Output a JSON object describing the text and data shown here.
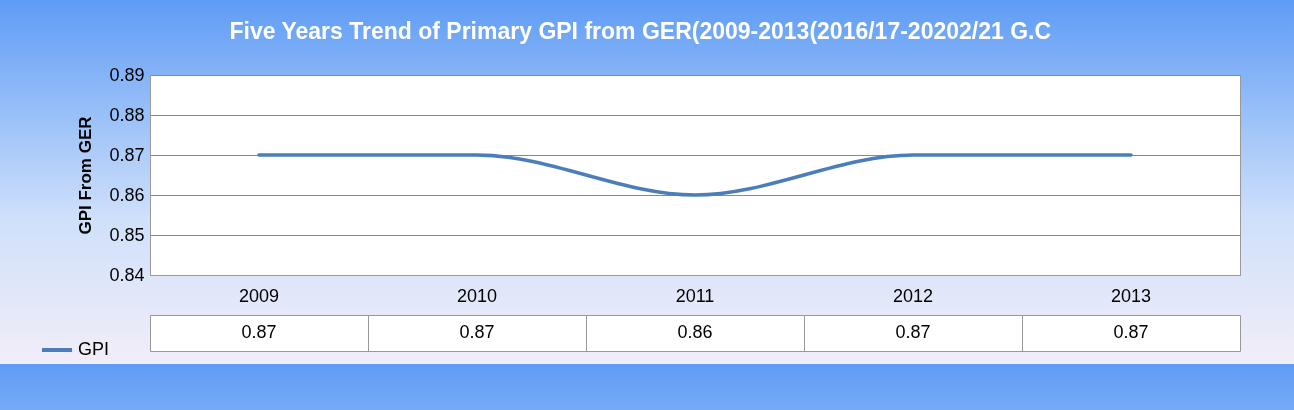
{
  "chart_data": {
    "type": "line",
    "title": "Five Years Trend of Primary GPI from GER(2009-2013(2016/17-20202/21 G.C",
    "ylabel": "GPI  From GER",
    "categories": [
      "2009",
      "2010",
      "2011",
      "2012",
      "2013"
    ],
    "series": [
      {
        "name": "GPI",
        "color": "#4a7ebb",
        "values": [
          0.87,
          0.87,
          0.86,
          0.87,
          0.87
        ]
      }
    ],
    "ylim": [
      0.84,
      0.89
    ],
    "yticks": [
      0.84,
      0.85,
      0.86,
      0.87,
      0.88,
      0.89
    ],
    "grid": "y",
    "legend": "bottom left",
    "data_labels": true,
    "marker": "none",
    "line_style": "solid"
  }
}
